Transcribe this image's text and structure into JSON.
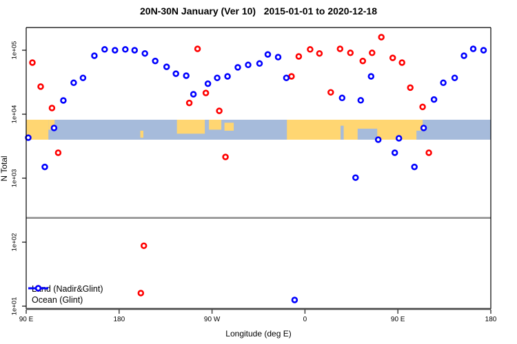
{
  "chart_data": {
    "type": "scatter",
    "title": "20N-30N January (Ver 10)   2015-01-01 to 2020-12-18",
    "xlabel": "Longitude (deg E)",
    "ylabel": "N Total",
    "x_axis": {
      "note": "longitude increases eastward from 90E, wrapping through 180, 90W, 0, 90E to 180",
      "range_deg_continuous": [
        90,
        540
      ],
      "ticks": [
        {
          "pos": 90,
          "label": "90 E"
        },
        {
          "pos": 180,
          "label": "180"
        },
        {
          "pos": 270,
          "label": "90 W"
        },
        {
          "pos": 360,
          "label": "0"
        },
        {
          "pos": 450,
          "label": "90 E"
        },
        {
          "pos": 540,
          "label": "180"
        }
      ]
    },
    "y_axis": {
      "scale": "log10",
      "range": [
        9,
        230000
      ],
      "ticks": [
        {
          "value": 10,
          "label": "1e+01"
        },
        {
          "value": 100,
          "label": "1e+02"
        },
        {
          "value": 1000,
          "label": "1e+03"
        },
        {
          "value": 10000,
          "label": "1e+04"
        },
        {
          "value": 100000,
          "label": "1e+05"
        }
      ]
    },
    "ref_line": {
      "value": 240,
      "color": "#8f8f8f"
    },
    "map_strip": {
      "value_top": 8200,
      "value_bottom": 4000,
      "ocean_color": "#a6bbdb",
      "land_color": "#ffd672",
      "land_segments": [
        {
          "from": 90,
          "to": 111.5,
          "top": 0,
          "h": 1
        },
        {
          "from": 111.5,
          "to": 117.5,
          "top": 0,
          "h": 0.5
        },
        {
          "from": 200.5,
          "to": 203.5,
          "top": 0.55,
          "h": 0.35
        },
        {
          "from": 236,
          "to": 263,
          "top": 0,
          "h": 0.7
        },
        {
          "from": 267,
          "to": 279,
          "top": 0,
          "h": 0.5
        },
        {
          "from": 282,
          "to": 291,
          "top": 0.15,
          "h": 0.4
        },
        {
          "from": 342.5,
          "to": 474,
          "top": 0,
          "h": 1
        }
      ],
      "ocean_notches": [
        {
          "from": 394.5,
          "to": 397.5,
          "top": 0.3,
          "h": 0.7
        },
        {
          "from": 411,
          "to": 430,
          "top": 0.45,
          "h": 0.55
        },
        {
          "from": 468,
          "to": 474,
          "top": 0.55,
          "h": 0.45
        }
      ]
    },
    "series": [
      {
        "name": "Land (Nadir&Glint)",
        "color": "#ff0000",
        "marker": "open-circle",
        "points": [
          [
            96,
            64000
          ],
          [
            104,
            27000
          ],
          [
            115,
            12500
          ],
          [
            121,
            2500
          ],
          [
            201,
            16
          ],
          [
            204,
            88
          ],
          [
            248,
            15000
          ],
          [
            256,
            105000
          ],
          [
            264,
            21500
          ],
          [
            277,
            11300
          ],
          [
            283,
            2150
          ],
          [
            347,
            39000
          ],
          [
            354,
            80000
          ],
          [
            365,
            103000
          ],
          [
            374,
            89000
          ],
          [
            385,
            22000
          ],
          [
            394,
            105000
          ],
          [
            404,
            91000
          ],
          [
            416,
            68000
          ],
          [
            425,
            91000
          ],
          [
            434,
            160000
          ],
          [
            445,
            76000
          ],
          [
            454,
            64000
          ],
          [
            462,
            26000
          ],
          [
            474,
            13000
          ],
          [
            480,
            2500
          ]
        ]
      },
      {
        "name": "Ocean (Glint)",
        "color": "#0000ff",
        "marker": "open-circle",
        "points": [
          [
            92,
            4300
          ],
          [
            108,
            1500
          ],
          [
            117,
            6100
          ],
          [
            126,
            16400
          ],
          [
            136,
            31000
          ],
          [
            145,
            37000
          ],
          [
            156,
            82000
          ],
          [
            166,
            103000
          ],
          [
            176,
            100000
          ],
          [
            186,
            103000
          ],
          [
            195,
            100000
          ],
          [
            205,
            89000
          ],
          [
            215,
            68000
          ],
          [
            226,
            55000
          ],
          [
            235,
            43000
          ],
          [
            245,
            40000
          ],
          [
            252,
            20500
          ],
          [
            266,
            30000
          ],
          [
            275,
            37000
          ],
          [
            285,
            39000
          ],
          [
            295,
            54000
          ],
          [
            305,
            59000
          ],
          [
            316,
            62000
          ],
          [
            324,
            86000
          ],
          [
            334,
            78000
          ],
          [
            342,
            37000
          ],
          [
            350,
            12.5
          ],
          [
            396,
            18000
          ],
          [
            409,
            1020
          ],
          [
            414,
            16500
          ],
          [
            424,
            39000
          ],
          [
            431,
            4000
          ],
          [
            447,
            2500
          ],
          [
            451,
            4200
          ],
          [
            466,
            1500
          ],
          [
            475,
            6100
          ],
          [
            485,
            17000
          ],
          [
            494,
            31000
          ],
          [
            505,
            37000
          ],
          [
            514,
            82000
          ],
          [
            523,
            105000
          ],
          [
            533,
            100000
          ]
        ]
      }
    ],
    "legend_position": "bottom-left"
  },
  "legend": {
    "items": [
      {
        "label": "Land (Nadir&Glint)",
        "color": "#ff0000"
      },
      {
        "label": "Ocean (Glint)",
        "color": "#0000ff"
      }
    ]
  }
}
